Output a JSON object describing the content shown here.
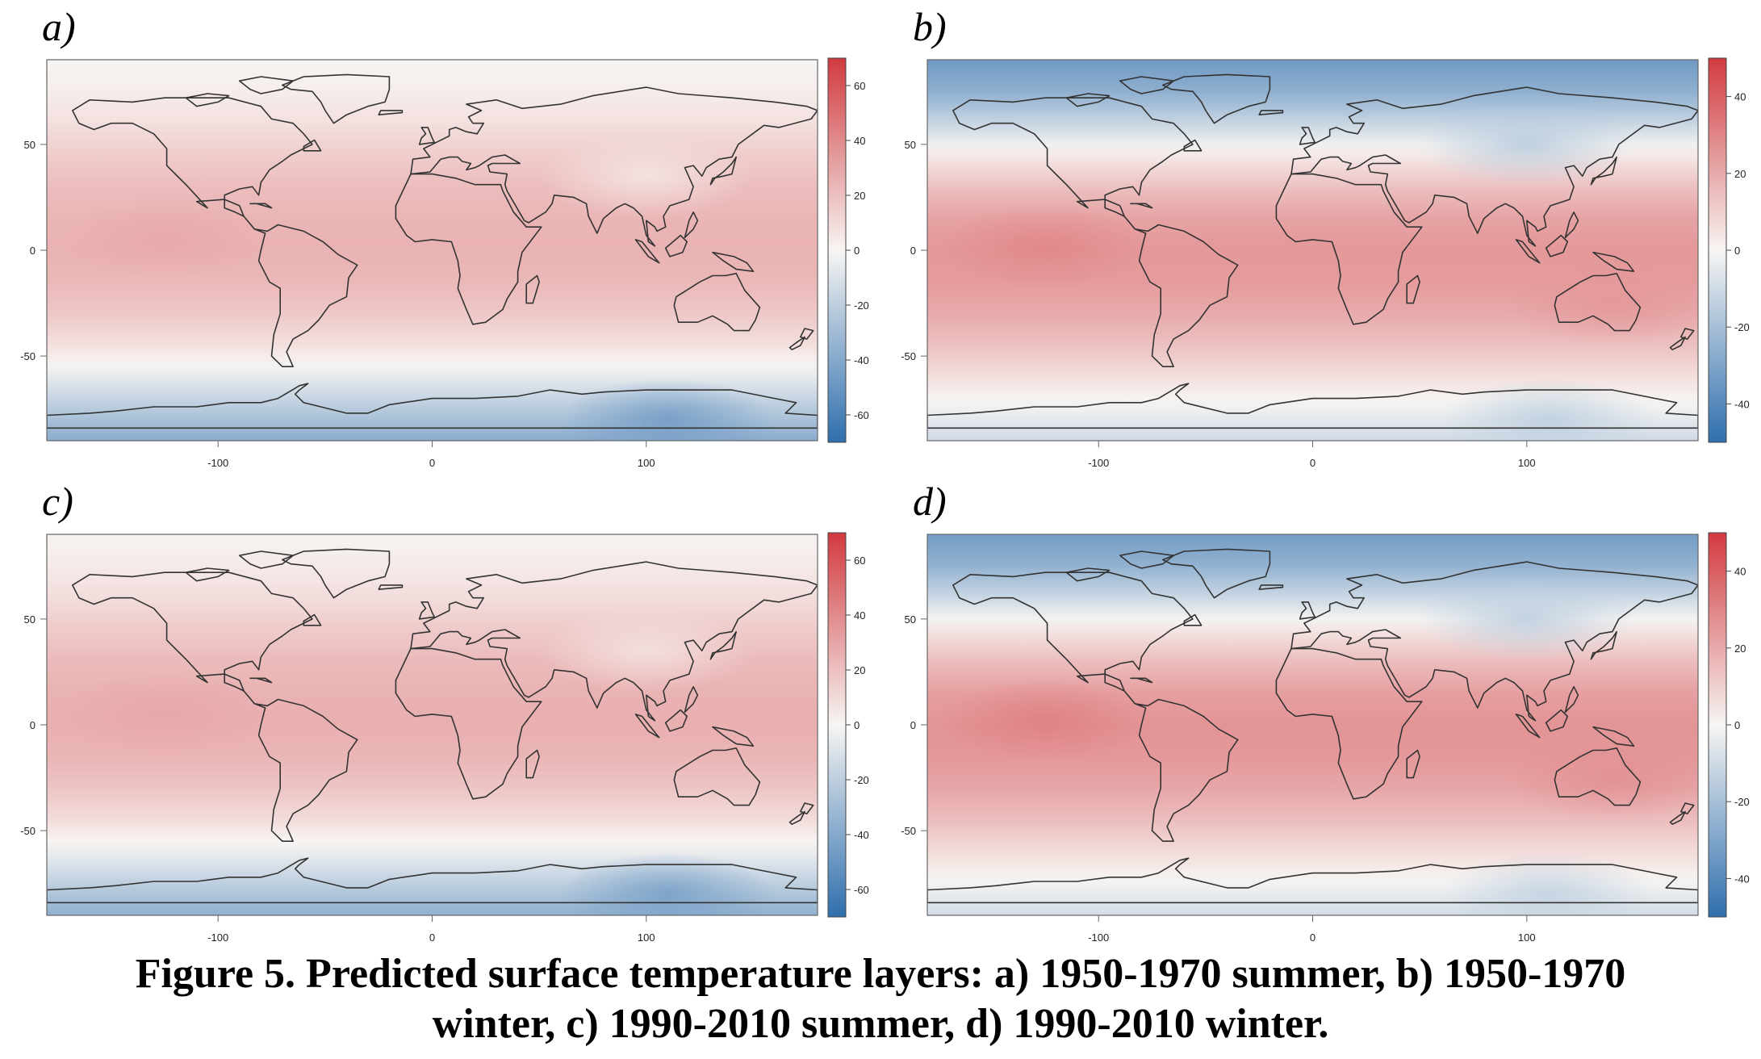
{
  "figure": {
    "caption_line1": "Figure 5. Predicted surface temperature layers: a) 1950-1970 summer, b) 1950-1970",
    "caption_line2": "winter, c) 1990-2010 summer, d) 1990-2010 winter."
  },
  "colors": {
    "scale_low": "#2f6fae",
    "scale_mid": "#f7f5f3",
    "scale_high": "#d13a3f",
    "coastline": "#333333",
    "frame": "#666666"
  },
  "chart_data": [
    {
      "type": "heatmap",
      "label": "a)",
      "xlabel": "",
      "ylabel": "",
      "xlim": [
        -180,
        180
      ],
      "ylim": [
        -90,
        90
      ],
      "x_ticks": [
        -100,
        0,
        100
      ],
      "x_tick_labels": [
        "-100",
        "0",
        "100"
      ],
      "y_ticks": [
        -50,
        0,
        50
      ],
      "y_tick_labels": [
        "-50",
        "0",
        "50"
      ],
      "colorbar": {
        "range": [
          -70,
          70
        ],
        "ticks": [
          -60,
          -40,
          -20,
          0,
          20,
          40,
          60
        ],
        "tick_labels": [
          "-60",
          "-40",
          "-20",
          "0",
          "20",
          "40",
          "60"
        ]
      },
      "lat_profile": [
        [
          -90,
          -38
        ],
        [
          -75,
          -22
        ],
        [
          -60,
          -6
        ],
        [
          -45,
          8
        ],
        [
          -30,
          17
        ],
        [
          -15,
          23
        ],
        [
          0,
          25
        ],
        [
          15,
          24
        ],
        [
          30,
          21
        ],
        [
          45,
          15
        ],
        [
          60,
          8
        ],
        [
          75,
          3
        ],
        [
          90,
          0
        ]
      ],
      "hotspots": [
        {
          "lon": -125,
          "lat": 5,
          "dT": 4
        },
        {
          "lon": 100,
          "lat": 35,
          "dT": -14
        },
        {
          "lon": 110,
          "lat": -80,
          "dT": -20
        }
      ]
    },
    {
      "type": "heatmap",
      "label": "b)",
      "xlabel": "",
      "ylabel": "",
      "xlim": [
        -180,
        180
      ],
      "ylim": [
        -90,
        90
      ],
      "x_ticks": [
        -100,
        0,
        100
      ],
      "x_tick_labels": [
        "-100",
        "0",
        "100"
      ],
      "y_ticks": [
        -50,
        0,
        50
      ],
      "y_tick_labels": [
        "-50",
        "0",
        "50"
      ],
      "colorbar": {
        "range": [
          -50,
          50
        ],
        "ticks": [
          -40,
          -20,
          0,
          20,
          40
        ],
        "tick_labels": [
          "-40",
          "-20",
          "0",
          "20",
          "40"
        ]
      },
      "lat_profile": [
        [
          -90,
          -10
        ],
        [
          -75,
          -2
        ],
        [
          -60,
          6
        ],
        [
          -45,
          14
        ],
        [
          -30,
          20
        ],
        [
          -15,
          24
        ],
        [
          0,
          25
        ],
        [
          15,
          22
        ],
        [
          30,
          14
        ],
        [
          45,
          3
        ],
        [
          60,
          -12
        ],
        [
          75,
          -26
        ],
        [
          90,
          -34
        ]
      ],
      "hotspots": [
        {
          "lon": -125,
          "lat": 2,
          "dT": 5
        },
        {
          "lon": 100,
          "lat": 50,
          "dT": -14
        },
        {
          "lon": 110,
          "lat": -80,
          "dT": -10
        },
        {
          "lon": 140,
          "lat": -25,
          "dT": 4
        }
      ]
    },
    {
      "type": "heatmap",
      "label": "c)",
      "xlabel": "",
      "ylabel": "",
      "xlim": [
        -180,
        180
      ],
      "ylim": [
        -90,
        90
      ],
      "x_ticks": [
        -100,
        0,
        100
      ],
      "x_tick_labels": [
        "-100",
        "0",
        "100"
      ],
      "y_ticks": [
        -50,
        0,
        50
      ],
      "y_tick_labels": [
        "-50",
        "0",
        "50"
      ],
      "colorbar": {
        "range": [
          -70,
          70
        ],
        "ticks": [
          -60,
          -40,
          -20,
          0,
          20,
          40,
          60
        ],
        "tick_labels": [
          "-60",
          "-40",
          "-20",
          "0",
          "20",
          "40",
          "60"
        ]
      },
      "lat_profile": [
        [
          -90,
          -36
        ],
        [
          -75,
          -20
        ],
        [
          -60,
          -4
        ],
        [
          -45,
          9
        ],
        [
          -30,
          18
        ],
        [
          -15,
          24
        ],
        [
          0,
          26
        ],
        [
          15,
          25
        ],
        [
          30,
          22
        ],
        [
          45,
          16
        ],
        [
          60,
          9
        ],
        [
          75,
          4
        ],
        [
          90,
          1
        ]
      ],
      "hotspots": [
        {
          "lon": -125,
          "lat": 5,
          "dT": 4
        },
        {
          "lon": 100,
          "lat": 35,
          "dT": -14
        },
        {
          "lon": 110,
          "lat": -80,
          "dT": -20
        }
      ]
    },
    {
      "type": "heatmap",
      "label": "d)",
      "xlabel": "",
      "ylabel": "",
      "xlim": [
        -180,
        180
      ],
      "ylim": [
        -90,
        90
      ],
      "x_ticks": [
        -100,
        0,
        100
      ],
      "x_tick_labels": [
        "-100",
        "0",
        "100"
      ],
      "y_ticks": [
        -50,
        0,
        50
      ],
      "y_tick_labels": [
        "-50",
        "0",
        "50"
      ],
      "colorbar": {
        "range": [
          -50,
          50
        ],
        "ticks": [
          -40,
          -20,
          0,
          20,
          40
        ],
        "tick_labels": [
          "-40",
          "-20",
          "0",
          "20",
          "40"
        ]
      },
      "lat_profile": [
        [
          -90,
          -9
        ],
        [
          -75,
          -1
        ],
        [
          -60,
          7
        ],
        [
          -45,
          15
        ],
        [
          -30,
          21
        ],
        [
          -15,
          25
        ],
        [
          0,
          26
        ],
        [
          15,
          23
        ],
        [
          30,
          15
        ],
        [
          45,
          4
        ],
        [
          60,
          -11
        ],
        [
          75,
          -25
        ],
        [
          90,
          -33
        ]
      ],
      "hotspots": [
        {
          "lon": -125,
          "lat": 2,
          "dT": 6
        },
        {
          "lon": 100,
          "lat": 50,
          "dT": -14
        },
        {
          "lon": 110,
          "lat": -80,
          "dT": -10
        },
        {
          "lon": 140,
          "lat": -25,
          "dT": 5
        }
      ]
    }
  ]
}
